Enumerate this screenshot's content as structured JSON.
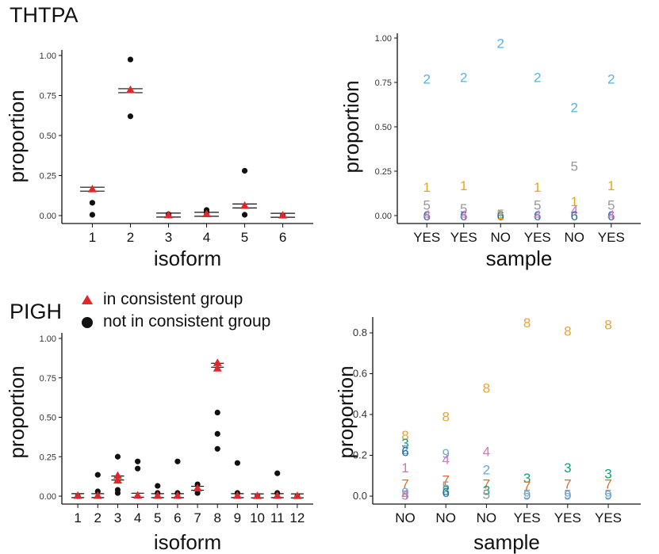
{
  "labels": {
    "thtpa": "THTPA",
    "pigh": "PIGH"
  },
  "legend": {
    "triangle_label": "in consistent group",
    "dot_label": "not in consistent group"
  },
  "colors": {
    "red": "#e3262b",
    "black": "#111111",
    "iso1": "#d66fb4",
    "iso2": "#56b3e6",
    "iso3": "#14a077",
    "iso4": "#cc79c0",
    "iso5": "#999999",
    "iso6": "#1f6fad",
    "iso7": "#d96d2a",
    "iso8": "#e8a33a",
    "iso9": "#6aa8d8",
    "thtpa_iso1": "#eba31c"
  },
  "chart_data": [
    {
      "type": "scatter",
      "panel": "THTPA isoform",
      "xlabel": "isoform",
      "ylabel": "proportion",
      "categories": [
        "1",
        "2",
        "3",
        "4",
        "5",
        "6"
      ],
      "ylim": [
        0,
        1
      ],
      "yticks": [
        "0.00",
        "0.25",
        "0.50",
        "0.75",
        "1.00"
      ],
      "mean_lines": [
        0.165,
        0.78,
        0.003,
        0.008,
        0.06,
        0.002
      ],
      "triangles": [
        {
          "x": "1",
          "y": 0.165
        },
        {
          "x": "2",
          "y": 0.785
        },
        {
          "x": "3",
          "y": 0.003
        },
        {
          "x": "4",
          "y": 0.01
        },
        {
          "x": "5",
          "y": 0.062
        },
        {
          "x": "6",
          "y": 0.002
        }
      ],
      "dots": [
        {
          "x": "1",
          "y": 0.08
        },
        {
          "x": "1",
          "y": 0.005
        },
        {
          "x": "2",
          "y": 0.975
        },
        {
          "x": "2",
          "y": 0.62
        },
        {
          "x": "3",
          "y": 0.008
        },
        {
          "x": "4",
          "y": 0.035
        },
        {
          "x": "4",
          "y": 0.02
        },
        {
          "x": "5",
          "y": 0.28
        },
        {
          "x": "5",
          "y": 0.005
        },
        {
          "x": "6",
          "y": 0.0
        }
      ]
    },
    {
      "type": "scatter",
      "panel": "THTPA sample",
      "xlabel": "sample",
      "ylabel": "proportion",
      "categories": [
        "YES",
        "YES",
        "NO",
        "YES",
        "NO",
        "YES"
      ],
      "ylim": [
        0,
        1
      ],
      "yticks": [
        "0.00",
        "0.25",
        "0.50",
        "0.75",
        "1.00"
      ],
      "points": [
        {
          "i": 0,
          "label": "2",
          "y": 0.77,
          "color": "iso2"
        },
        {
          "i": 0,
          "label": "1",
          "y": 0.16,
          "color": "thtpa_iso1"
        },
        {
          "i": 0,
          "label": "5",
          "y": 0.06,
          "color": "iso5"
        },
        {
          "i": 0,
          "label": "6",
          "y": 0.0,
          "color": "iso6"
        },
        {
          "i": 0,
          "label": "4",
          "y": 0.005,
          "color": "iso4"
        },
        {
          "i": 1,
          "label": "2",
          "y": 0.78,
          "color": "iso2"
        },
        {
          "i": 1,
          "label": "1",
          "y": 0.17,
          "color": "thtpa_iso1"
        },
        {
          "i": 1,
          "label": "5",
          "y": 0.04,
          "color": "iso5"
        },
        {
          "i": 1,
          "label": "6",
          "y": 0.0,
          "color": "iso6"
        },
        {
          "i": 1,
          "label": "4",
          "y": 0.005,
          "color": "iso4"
        },
        {
          "i": 2,
          "label": "2",
          "y": 0.97,
          "color": "iso2"
        },
        {
          "i": 2,
          "label": "5",
          "y": 0.01,
          "color": "iso5"
        },
        {
          "i": 2,
          "label": "6",
          "y": 0.0,
          "color": "iso6"
        },
        {
          "i": 2,
          "label": "1",
          "y": 0.005,
          "color": "thtpa_iso1"
        },
        {
          "i": 3,
          "label": "2",
          "y": 0.78,
          "color": "iso2"
        },
        {
          "i": 3,
          "label": "1",
          "y": 0.16,
          "color": "thtpa_iso1"
        },
        {
          "i": 3,
          "label": "5",
          "y": 0.06,
          "color": "iso5"
        },
        {
          "i": 3,
          "label": "6",
          "y": 0.0,
          "color": "iso6"
        },
        {
          "i": 3,
          "label": "4",
          "y": 0.005,
          "color": "iso4"
        },
        {
          "i": 4,
          "label": "2",
          "y": 0.61,
          "color": "iso2"
        },
        {
          "i": 4,
          "label": "5",
          "y": 0.28,
          "color": "iso5"
        },
        {
          "i": 4,
          "label": "1",
          "y": 0.08,
          "color": "thtpa_iso1"
        },
        {
          "i": 4,
          "label": "4",
          "y": 0.03,
          "color": "iso4"
        },
        {
          "i": 4,
          "label": "6",
          "y": 0.0,
          "color": "iso6"
        },
        {
          "i": 5,
          "label": "2",
          "y": 0.77,
          "color": "iso2"
        },
        {
          "i": 5,
          "label": "1",
          "y": 0.17,
          "color": "thtpa_iso1"
        },
        {
          "i": 5,
          "label": "5",
          "y": 0.06,
          "color": "iso5"
        },
        {
          "i": 5,
          "label": "6",
          "y": 0.0,
          "color": "iso6"
        },
        {
          "i": 5,
          "label": "4",
          "y": 0.005,
          "color": "iso4"
        }
      ]
    },
    {
      "type": "scatter",
      "panel": "PIGH isoform",
      "xlabel": "isoform",
      "ylabel": "proportion",
      "categories": [
        "1",
        "2",
        "3",
        "4",
        "5",
        "6",
        "7",
        "8",
        "9",
        "10",
        "11",
        "12"
      ],
      "ylim": [
        0,
        1
      ],
      "yticks": [
        "0.00",
        "0.25",
        "0.50",
        "0.75",
        "1.00"
      ],
      "mean_lines": [
        0.003,
        0.003,
        0.115,
        0.006,
        0.003,
        0.003,
        0.05,
        0.83,
        0.003,
        0.002,
        0.003,
        0.002
      ],
      "triangles": [
        {
          "x": "1",
          "y": 0.003
        },
        {
          "x": "2",
          "y": 0.003
        },
        {
          "x": "3",
          "y": 0.13
        },
        {
          "x": "3",
          "y": 0.1
        },
        {
          "x": "4",
          "y": 0.005
        },
        {
          "x": "5",
          "y": 0.003
        },
        {
          "x": "6",
          "y": 0.003
        },
        {
          "x": "7",
          "y": 0.05
        },
        {
          "x": "8",
          "y": 0.845
        },
        {
          "x": "8",
          "y": 0.81
        },
        {
          "x": "9",
          "y": 0.003
        },
        {
          "x": "10",
          "y": 0.002
        },
        {
          "x": "11",
          "y": 0.003
        },
        {
          "x": "12",
          "y": 0.002
        }
      ],
      "dots": [
        {
          "x": "1",
          "y": 0.0
        },
        {
          "x": "2",
          "y": 0.135
        },
        {
          "x": "2",
          "y": 0.03
        },
        {
          "x": "3",
          "y": 0.25
        },
        {
          "x": "3",
          "y": 0.04
        },
        {
          "x": "3",
          "y": 0.02
        },
        {
          "x": "4",
          "y": 0.22
        },
        {
          "x": "4",
          "y": 0.175
        },
        {
          "x": "5",
          "y": 0.065
        },
        {
          "x": "5",
          "y": 0.02
        },
        {
          "x": "6",
          "y": 0.22
        },
        {
          "x": "6",
          "y": 0.02
        },
        {
          "x": "7",
          "y": 0.075
        },
        {
          "x": "7",
          "y": 0.02
        },
        {
          "x": "8",
          "y": 0.53
        },
        {
          "x": "8",
          "y": 0.395
        },
        {
          "x": "8",
          "y": 0.3
        },
        {
          "x": "9",
          "y": 0.21
        },
        {
          "x": "9",
          "y": 0.02
        },
        {
          "x": "10",
          "y": 0.0
        },
        {
          "x": "11",
          "y": 0.145
        },
        {
          "x": "11",
          "y": 0.02
        },
        {
          "x": "12",
          "y": 0.0
        }
      ]
    },
    {
      "type": "scatter",
      "panel": "PIGH sample",
      "xlabel": "sample",
      "ylabel": "proportion",
      "categories": [
        "NO",
        "NO",
        "NO",
        "YES",
        "YES",
        "YES"
      ],
      "ylim": [
        0,
        0.88
      ],
      "yticks": [
        "0.0",
        "0.2",
        "0.4",
        "0.6",
        "0.8"
      ],
      "points": [
        {
          "i": 0,
          "label": "8",
          "y": 0.3,
          "color": "iso8"
        },
        {
          "i": 0,
          "label": "3",
          "y": 0.26,
          "color": "iso3"
        },
        {
          "i": 0,
          "label": "2",
          "y": 0.23,
          "color": "iso9"
        },
        {
          "i": 0,
          "label": "6",
          "y": 0.22,
          "color": "iso6"
        },
        {
          "i": 0,
          "label": "1",
          "y": 0.14,
          "color": "iso1"
        },
        {
          "i": 0,
          "label": "7",
          "y": 0.06,
          "color": "iso7"
        },
        {
          "i": 0,
          "label": "9",
          "y": 0.02,
          "color": "iso9"
        },
        {
          "i": 0,
          "label": "4",
          "y": 0.01,
          "color": "iso4"
        },
        {
          "i": 0,
          "label": "5",
          "y": 0.005,
          "color": "iso5"
        },
        {
          "i": 1,
          "label": "8",
          "y": 0.39,
          "color": "iso8"
        },
        {
          "i": 1,
          "label": "9",
          "y": 0.21,
          "color": "iso9"
        },
        {
          "i": 1,
          "label": "4",
          "y": 0.18,
          "color": "iso4"
        },
        {
          "i": 1,
          "label": "7",
          "y": 0.08,
          "color": "iso7"
        },
        {
          "i": 1,
          "label": "5",
          "y": 0.05,
          "color": "iso5"
        },
        {
          "i": 1,
          "label": "3",
          "y": 0.03,
          "color": "iso3"
        },
        {
          "i": 1,
          "label": "6",
          "y": 0.02,
          "color": "iso6"
        },
        {
          "i": 2,
          "label": "8",
          "y": 0.53,
          "color": "iso8"
        },
        {
          "i": 2,
          "label": "4",
          "y": 0.22,
          "color": "iso4"
        },
        {
          "i": 2,
          "label": "2",
          "y": 0.13,
          "color": "iso9"
        },
        {
          "i": 2,
          "label": "7",
          "y": 0.06,
          "color": "iso7"
        },
        {
          "i": 2,
          "label": "3",
          "y": 0.03,
          "color": "iso3"
        },
        {
          "i": 2,
          "label": "5",
          "y": 0.01,
          "color": "iso5"
        },
        {
          "i": 3,
          "label": "8",
          "y": 0.85,
          "color": "iso8"
        },
        {
          "i": 3,
          "label": "3",
          "y": 0.09,
          "color": "iso3"
        },
        {
          "i": 3,
          "label": "7",
          "y": 0.05,
          "color": "iso7"
        },
        {
          "i": 3,
          "label": "5",
          "y": 0.01,
          "color": "iso5"
        },
        {
          "i": 3,
          "label": "9",
          "y": 0.005,
          "color": "iso9"
        },
        {
          "i": 4,
          "label": "8",
          "y": 0.81,
          "color": "iso8"
        },
        {
          "i": 4,
          "label": "3",
          "y": 0.14,
          "color": "iso3"
        },
        {
          "i": 4,
          "label": "7",
          "y": 0.06,
          "color": "iso7"
        },
        {
          "i": 4,
          "label": "5",
          "y": 0.01,
          "color": "iso5"
        },
        {
          "i": 4,
          "label": "9",
          "y": 0.005,
          "color": "iso9"
        },
        {
          "i": 5,
          "label": "8",
          "y": 0.84,
          "color": "iso8"
        },
        {
          "i": 5,
          "label": "3",
          "y": 0.11,
          "color": "iso3"
        },
        {
          "i": 5,
          "label": "7",
          "y": 0.06,
          "color": "iso7"
        },
        {
          "i": 5,
          "label": "5",
          "y": 0.01,
          "color": "iso5"
        },
        {
          "i": 5,
          "label": "9",
          "y": 0.005,
          "color": "iso9"
        }
      ]
    }
  ]
}
